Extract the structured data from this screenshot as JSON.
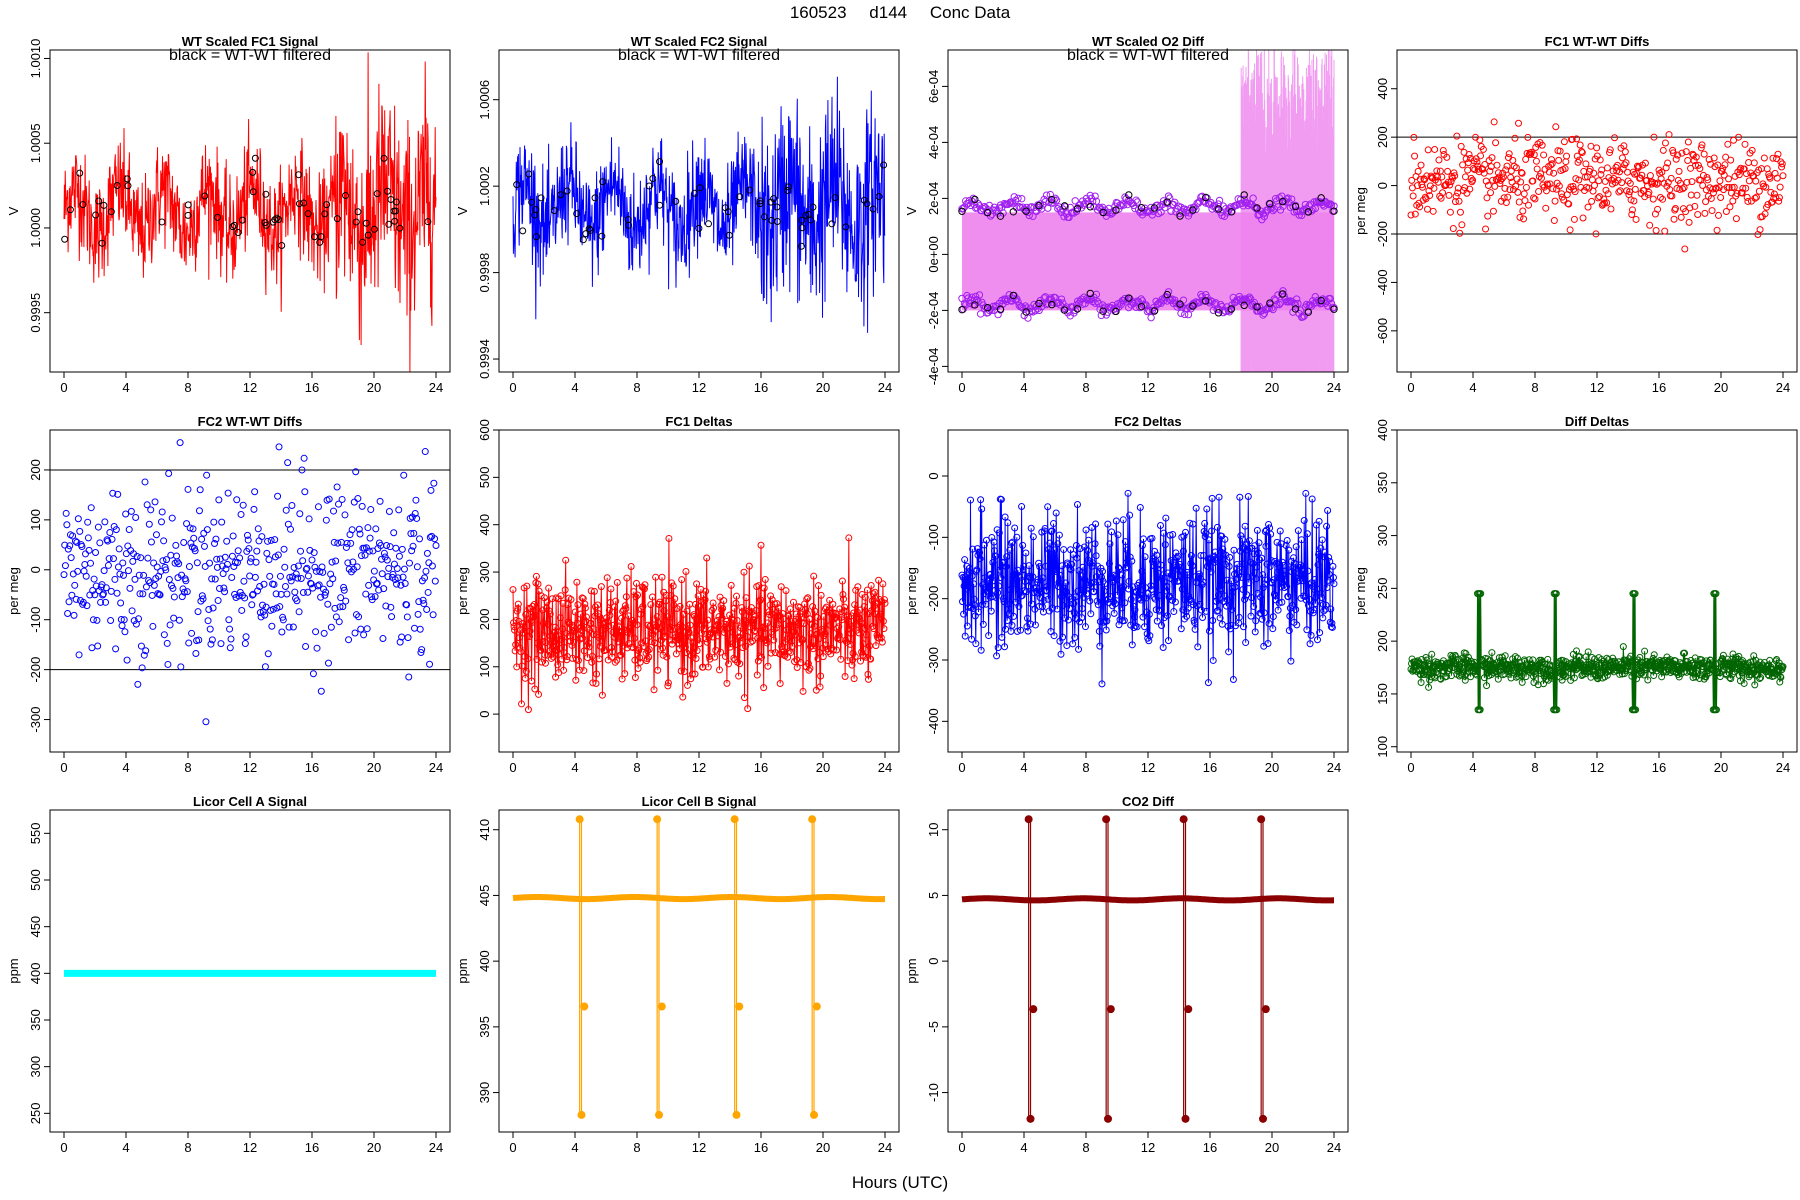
{
  "header": {
    "date": "160523",
    "day": "d144",
    "label": "Conc Data"
  },
  "global_xlabel": "Hours (UTC)",
  "chart_data": [
    {
      "type": "line",
      "title": "WT Scaled FC1 Signal",
      "annotation": "black = WT-WT filtered",
      "ylabel": "V",
      "xlim": [
        0,
        24
      ],
      "ylim": [
        0.99915,
        1.00105
      ],
      "xticks": [
        0,
        4,
        8,
        12,
        16,
        20,
        24
      ],
      "yticks": [
        0.9995,
        1.0,
        1.0005,
        1.001
      ],
      "ytick_labels": [
        "0.9995",
        "1.0000",
        "1.0005",
        "1.0010"
      ],
      "series": [
        {
          "color": "#ff0000",
          "style": "dense",
          "base": 1.0001,
          "noise": 0.00022,
          "burst_start": 17.5,
          "burst_noise": 0.00045
        },
        {
          "color": "#000000",
          "style": "points",
          "base": 1.0001,
          "noise": 0.00016,
          "n": 60
        }
      ]
    },
    {
      "type": "line",
      "title": "WT Scaled FC2 Signal",
      "annotation": "black = WT-WT filtered",
      "ylabel": "V",
      "xlim": [
        0,
        24
      ],
      "ylim": [
        0.99934,
        1.00083
      ],
      "xticks": [
        0,
        4,
        8,
        12,
        16,
        20,
        24
      ],
      "yticks": [
        0.9994,
        0.9998,
        1.0002,
        1.0006
      ],
      "ytick_labels": [
        "0.9994",
        "0.9998",
        "1.0002",
        "1.0006"
      ],
      "series": [
        {
          "color": "#0000ff",
          "style": "dense",
          "base": 1.0001,
          "noise": 0.00018,
          "burst_start": 16.0,
          "burst_noise": 0.00032
        },
        {
          "color": "#000000",
          "style": "points",
          "base": 1.0001,
          "noise": 0.00012,
          "n": 60
        }
      ]
    },
    {
      "type": "scatter",
      "title": "WT Scaled O2 Diff",
      "annotation": "black = WT-WT filtered",
      "ylabel": "V",
      "xlim": [
        0,
        24
      ],
      "ylim": [
        -0.00042,
        0.00073
      ],
      "xticks": [
        0,
        4,
        8,
        12,
        16,
        20,
        24
      ],
      "yticks": [
        -0.0004,
        -0.0002,
        0.0,
        0.0002,
        0.0004,
        0.0006
      ],
      "ytick_labels": [
        "-4e-04",
        "-2e-04",
        "0e+00",
        "2e-04",
        "4e-04",
        "6e-04"
      ],
      "series": [
        {
          "color": "#ee82ee",
          "style": "band",
          "low": -0.0002,
          "high": 0.00015,
          "burst_start": 18.0
        },
        {
          "color": "#a020f0",
          "style": "twotrack",
          "upper": 0.00017,
          "lower": -0.00018,
          "n": 300
        },
        {
          "color": "#000000",
          "style": "twotrack",
          "upper": 0.00017,
          "lower": -0.00018,
          "n": 30
        }
      ]
    },
    {
      "type": "scatter",
      "title": "FC1 WT-WT Diffs",
      "ylabel": "per meg",
      "xlim": [
        0,
        24
      ],
      "ylim": [
        -770,
        560
      ],
      "xticks": [
        0,
        4,
        8,
        12,
        16,
        20,
        24
      ],
      "yticks": [
        -600,
        -400,
        -200,
        0,
        200,
        400
      ],
      "ytick_labels": [
        "-600",
        "-400",
        "-200",
        "0",
        "200",
        "400"
      ],
      "hlines": [
        200,
        -200
      ],
      "series": [
        {
          "color": "#ff0000",
          "style": "scatter",
          "base": 20,
          "noise": 85,
          "n": 520
        }
      ]
    },
    {
      "type": "scatter",
      "title": "FC2 WT-WT Diffs",
      "ylabel": "per meg",
      "xlim": [
        0,
        24
      ],
      "ylim": [
        -365,
        280
      ],
      "xticks": [
        0,
        4,
        8,
        12,
        16,
        20,
        24
      ],
      "yticks": [
        -300,
        -200,
        -100,
        0,
        100,
        200
      ],
      "ytick_labels": [
        "-300",
        "-200",
        "-100",
        "0",
        "100",
        "200"
      ],
      "hlines": [
        200,
        -200
      ],
      "series": [
        {
          "color": "#0000ff",
          "style": "scatter",
          "base": 0,
          "noise": 90,
          "n": 520
        }
      ]
    },
    {
      "type": "line",
      "title": "FC1 Deltas",
      "ylabel": "per meg",
      "xlim": [
        0,
        24
      ],
      "ylim": [
        -80,
        600
      ],
      "xticks": [
        0,
        4,
        8,
        12,
        16,
        20,
        24
      ],
      "yticks": [
        0,
        100,
        200,
        300,
        400,
        500,
        600
      ],
      "ytick_labels": [
        "0",
        "100",
        "200",
        "300",
        "400",
        "500",
        "600"
      ],
      "series": [
        {
          "color": "#ff0000",
          "style": "linepoints",
          "base": 175,
          "noise": 55,
          "n": 700
        }
      ]
    },
    {
      "type": "line",
      "title": "FC2 Deltas",
      "ylabel": "per meg",
      "xlim": [
        0,
        24
      ],
      "ylim": [
        -450,
        75
      ],
      "xticks": [
        0,
        4,
        8,
        12,
        16,
        20,
        24
      ],
      "yticks": [
        -400,
        -300,
        -200,
        -100,
        0
      ],
      "ytick_labels": [
        "-400",
        "-300",
        "-200",
        "-100",
        "0"
      ],
      "series": [
        {
          "color": "#0000ff",
          "style": "linepoints",
          "base": -170,
          "noise": 55,
          "n": 700
        }
      ]
    },
    {
      "type": "line",
      "title": "Diff Deltas",
      "ylabel": "per meg",
      "xlim": [
        0,
        24
      ],
      "ylim": [
        95,
        400
      ],
      "xticks": [
        0,
        4,
        8,
        12,
        16,
        20,
        24
      ],
      "yticks": [
        100,
        150,
        200,
        250,
        300,
        350,
        400
      ],
      "ytick_labels": [
        "100",
        "150",
        "200",
        "250",
        "300",
        "350",
        "400"
      ],
      "series": [
        {
          "color": "#006400",
          "style": "linepoints",
          "base": 175,
          "noise": 6,
          "n": 700,
          "spikes": [
            4.4,
            9.3,
            14.4,
            19.6
          ]
        }
      ]
    },
    {
      "type": "line",
      "title": "Licor Cell A Signal",
      "ylabel": "ppm",
      "xlim": [
        0,
        24
      ],
      "ylim": [
        230,
        575
      ],
      "xticks": [
        0,
        4,
        8,
        12,
        16,
        20,
        24
      ],
      "yticks": [
        250,
        300,
        350,
        400,
        450,
        500,
        550
      ],
      "ytick_labels": [
        "250",
        "300",
        "350",
        "400",
        "450",
        "500",
        "550"
      ],
      "series": [
        {
          "color": "#00ffff",
          "style": "flat",
          "value": 400
        }
      ]
    },
    {
      "type": "line",
      "title": "Licor Cell B Signal",
      "ylabel": "ppm",
      "xlim": [
        0,
        24
      ],
      "ylim": [
        387,
        411.5
      ],
      "xticks": [
        0,
        4,
        8,
        12,
        16,
        20,
        24
      ],
      "yticks": [
        390,
        395,
        400,
        405,
        410
      ],
      "ytick_labels": [
        "390",
        "395",
        "400",
        "405",
        "410"
      ],
      "series": [
        {
          "color": "#ffa500",
          "style": "calib",
          "base": 404.8,
          "hi": 410.8,
          "lo": 388.3,
          "spikes": [
            4.3,
            9.3,
            14.3,
            19.3
          ]
        }
      ]
    },
    {
      "type": "line",
      "title": "CO2 Diff",
      "ylabel": "ppm",
      "xlim": [
        0,
        24
      ],
      "ylim": [
        -13,
        11.5
      ],
      "xticks": [
        0,
        4,
        8,
        12,
        16,
        20,
        24
      ],
      "yticks": [
        -10,
        -5,
        0,
        5,
        10
      ],
      "ytick_labels": [
        "-10",
        "-5",
        "0",
        "5",
        "10"
      ],
      "series": [
        {
          "color": "#8b0000",
          "style": "calib",
          "base": 4.7,
          "hi": 10.8,
          "lo": -12.0,
          "spikes": [
            4.3,
            9.3,
            14.3,
            19.3
          ]
        }
      ]
    }
  ]
}
